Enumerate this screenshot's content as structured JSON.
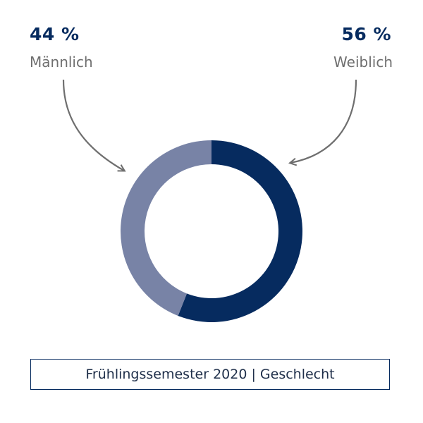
{
  "chart_data": {
    "type": "pie",
    "variant": "donut",
    "title": "",
    "categories": [
      "Männlich",
      "Weiblich"
    ],
    "values": [
      44,
      56
    ],
    "value_labels": [
      "44 %",
      "56 %"
    ],
    "colors": [
      "#7883a6",
      "#062b5f"
    ],
    "caption": "Frühlingssemester 2020  |  Geschlecht"
  },
  "annotations": {
    "left": {
      "percent": "44 %",
      "label": "Männlich"
    },
    "right": {
      "percent": "56 %",
      "label": "Weiblich"
    }
  },
  "colors": {
    "accent": "#062b5f",
    "secondary": "#7883a6",
    "arrow": "#6f6f6f",
    "label_text": "#6f6f6f"
  }
}
